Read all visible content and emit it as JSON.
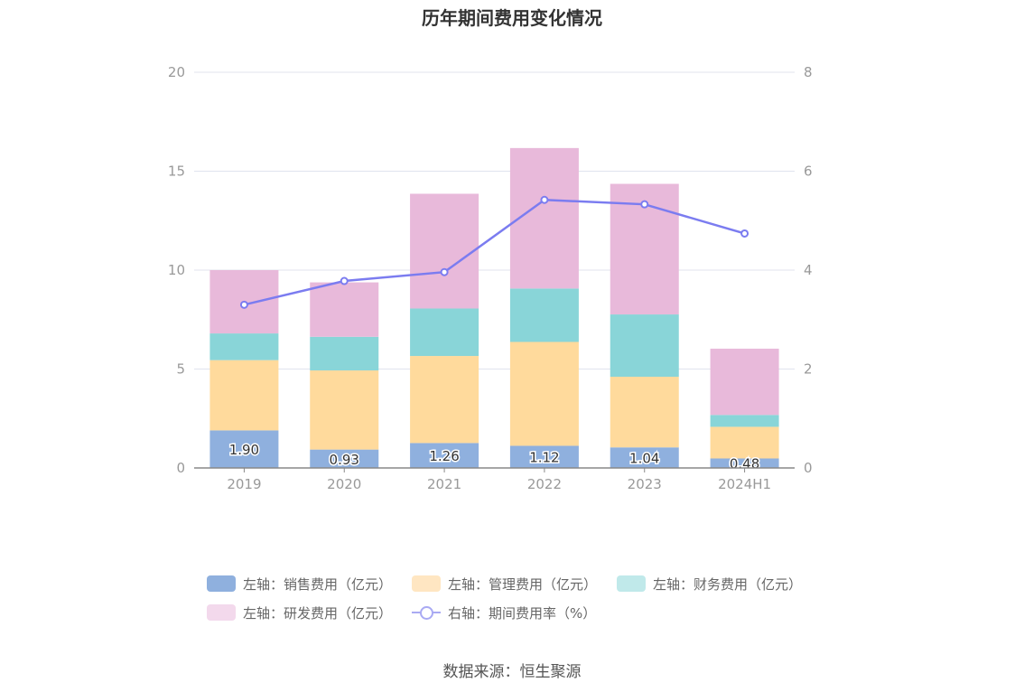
{
  "chart_data": {
    "type": "bar",
    "title": "历年期间费用变化情况",
    "categories": [
      "2019",
      "2020",
      "2021",
      "2022",
      "2023",
      "2024H1"
    ],
    "left_axis": {
      "ylim": [
        0,
        20
      ],
      "ticks": [
        "0",
        "5",
        "10",
        "15",
        "20"
      ]
    },
    "right_axis": {
      "ylim": [
        0,
        8
      ],
      "ticks": [
        "0",
        "2",
        "4",
        "6",
        "8"
      ]
    },
    "stacked": true,
    "grid": true,
    "legend_position": "bottom",
    "series": [
      {
        "name": "左轴：销售费用（亿元）",
        "axis": "left",
        "type": "bar",
        "color": "#8fb0de",
        "values": [
          1.9,
          0.93,
          1.26,
          1.12,
          1.04,
          0.48
        ],
        "labels": [
          "1.90",
          "0.93",
          "1.26",
          "1.12",
          "1.04",
          "0.48"
        ]
      },
      {
        "name": "左轴：管理费用（亿元）",
        "axis": "left",
        "type": "bar",
        "color": "#ffda9c",
        "values": [
          3.55,
          4.0,
          4.4,
          5.25,
          3.57,
          1.6
        ]
      },
      {
        "name": "左轴：财务费用（亿元）",
        "axis": "left",
        "type": "bar",
        "color": "#89d5d8",
        "values": [
          1.35,
          1.7,
          2.4,
          2.7,
          3.15,
          0.6
        ]
      },
      {
        "name": "左轴：研发费用（亿元）",
        "axis": "left",
        "type": "bar",
        "color": "#e8b9da",
        "values": [
          3.2,
          2.75,
          5.8,
          7.1,
          6.6,
          3.35
        ]
      },
      {
        "name": "右轴：期间费用率（%）",
        "axis": "right",
        "type": "line",
        "color": "#7b7cf0",
        "values": [
          3.3,
          3.78,
          3.96,
          5.42,
          5.33,
          4.74
        ]
      }
    ],
    "legend_swatch_colors": [
      "#8fb0de",
      "#ffe6c2",
      "#c0e9ea",
      "#f3d9ec"
    ]
  },
  "footer": {
    "source": "数据来源：恒生聚源"
  }
}
